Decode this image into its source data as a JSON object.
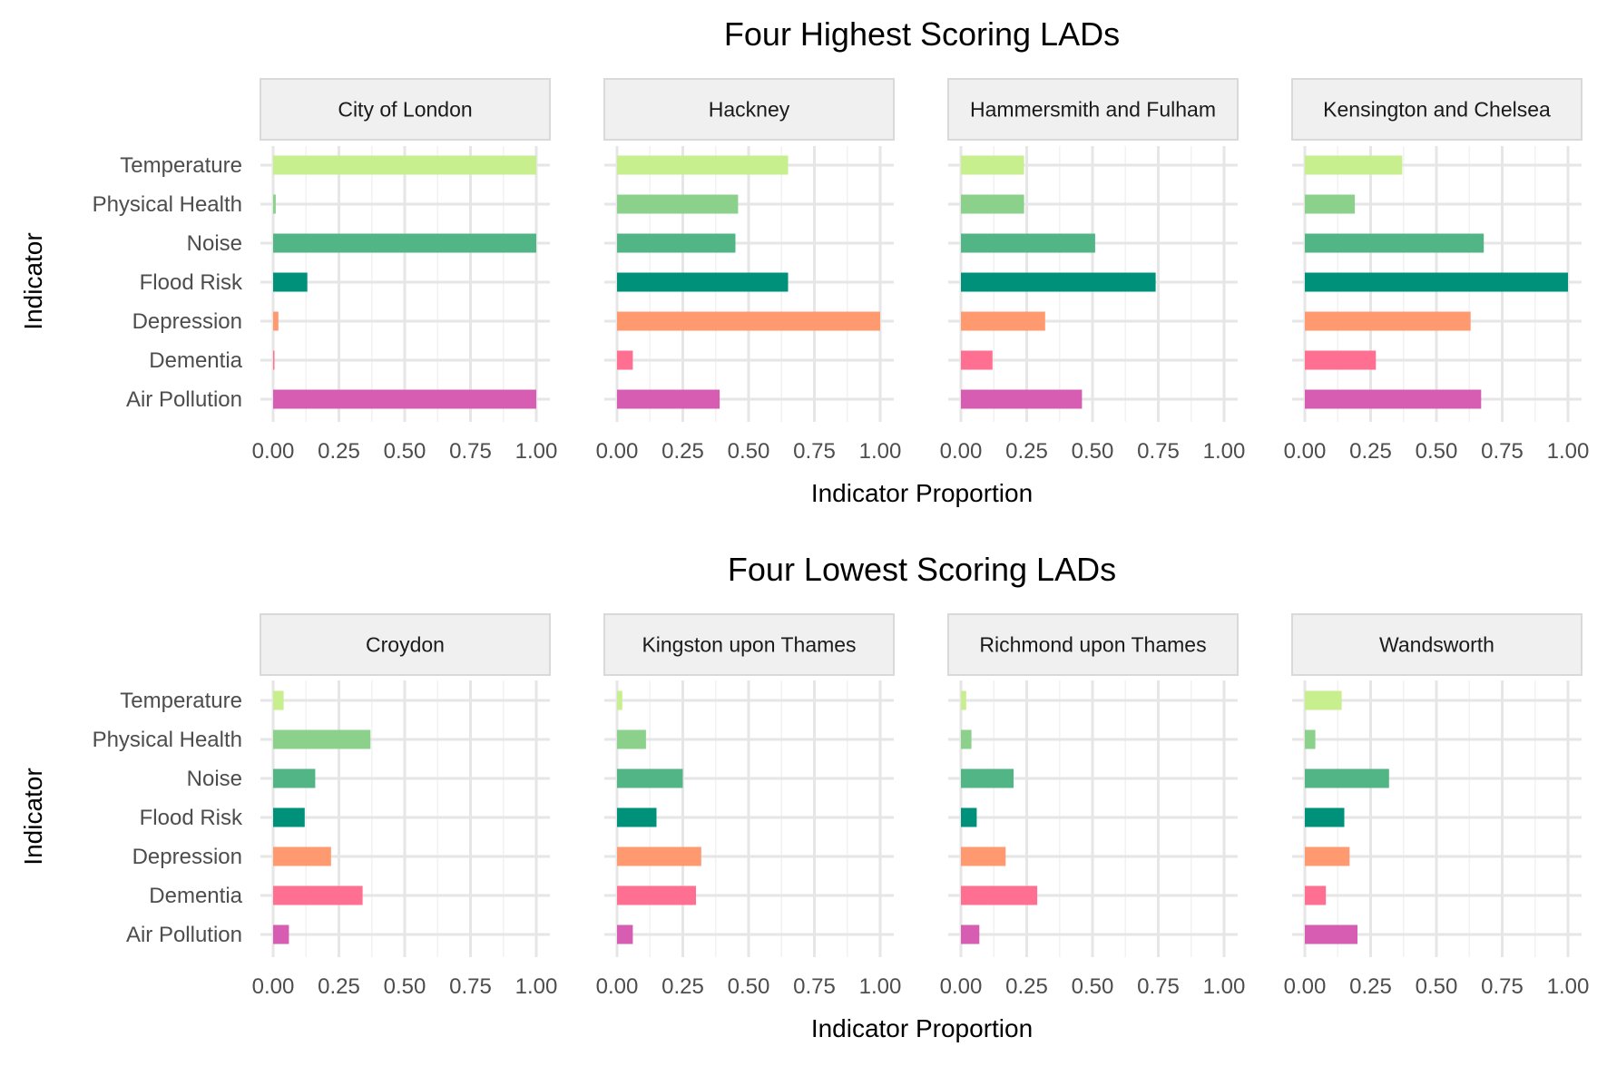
{
  "chart_data": [
    {
      "type": "bar",
      "orientation": "horizontal",
      "title": "Four Highest Scoring LADs",
      "xlabel": "Indicator Proportion",
      "ylabel": "Indicator",
      "xlim": [
        0,
        1
      ],
      "xticks": [
        "0.00",
        "0.25",
        "0.50",
        "0.75",
        "1.00"
      ],
      "grid": true,
      "categories": [
        "Temperature",
        "Physical Health",
        "Noise",
        "Flood Risk",
        "Depression",
        "Dementia",
        "Air Pollution"
      ],
      "colors": [
        "#c7ef8e",
        "#8bd18c",
        "#52b586",
        "#00917b",
        "#ff9970",
        "#ff6f91",
        "#d65db1"
      ],
      "panels": [
        {
          "name": "City of London",
          "values": [
            1.0,
            0.01,
            1.0,
            0.13,
            0.02,
            0.005,
            1.0
          ]
        },
        {
          "name": "Hackney",
          "values": [
            0.65,
            0.46,
            0.45,
            0.65,
            1.0,
            0.06,
            0.39
          ]
        },
        {
          "name": "Hammersmith and Fulham",
          "values": [
            0.24,
            0.24,
            0.51,
            0.74,
            0.32,
            0.12,
            0.46
          ]
        },
        {
          "name": "Kensington and Chelsea",
          "values": [
            0.37,
            0.19,
            0.68,
            1.0,
            0.63,
            0.27,
            0.67
          ]
        }
      ]
    },
    {
      "type": "bar",
      "orientation": "horizontal",
      "title": "Four Lowest Scoring LADs",
      "xlabel": "Indicator Proportion",
      "ylabel": "Indicator",
      "xlim": [
        0,
        1
      ],
      "xticks": [
        "0.00",
        "0.25",
        "0.50",
        "0.75",
        "1.00"
      ],
      "grid": true,
      "categories": [
        "Temperature",
        "Physical Health",
        "Noise",
        "Flood Risk",
        "Depression",
        "Dementia",
        "Air Pollution"
      ],
      "colors": [
        "#c7ef8e",
        "#8bd18c",
        "#52b586",
        "#00917b",
        "#ff9970",
        "#ff6f91",
        "#d65db1"
      ],
      "panels": [
        {
          "name": "Croydon",
          "values": [
            0.04,
            0.37,
            0.16,
            0.12,
            0.22,
            0.34,
            0.06
          ]
        },
        {
          "name": "Kingston upon Thames",
          "values": [
            0.02,
            0.11,
            0.25,
            0.15,
            0.32,
            0.3,
            0.06
          ]
        },
        {
          "name": "Richmond upon Thames",
          "values": [
            0.02,
            0.04,
            0.2,
            0.06,
            0.17,
            0.29,
            0.07
          ]
        },
        {
          "name": "Wandsworth",
          "values": [
            0.14,
            0.04,
            0.32,
            0.15,
            0.17,
            0.08,
            0.2
          ]
        }
      ]
    }
  ]
}
